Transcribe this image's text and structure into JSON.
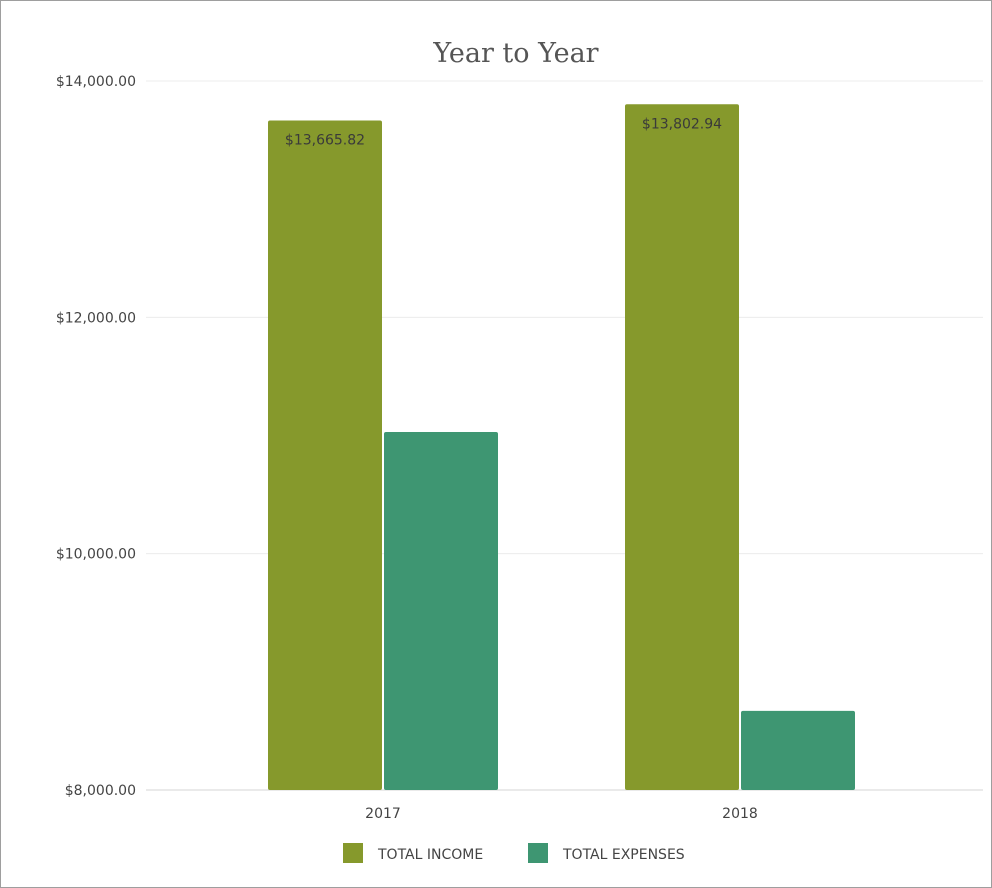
{
  "chart_data": {
    "type": "bar",
    "title": "Year to Year",
    "xlabel": "",
    "ylabel": "",
    "categories": [
      "2017",
      "2018"
    ],
    "series": [
      {
        "name": "TOTAL INCOME",
        "color": "#86992c",
        "values": [
          13665.82,
          13802.94
        ]
      },
      {
        "name": "TOTAL EXPENSES",
        "color": "#3e9672",
        "values": [
          11030,
          8670
        ]
      }
    ],
    "data_labels": {
      "TOTAL INCOME": [
        "$13,665.82",
        "$13,802.94"
      ]
    },
    "ylim": [
      8000,
      14000
    ],
    "yticks": [
      8000,
      10000,
      12000,
      14000
    ],
    "ytick_labels": [
      "$8,000.00",
      "$10,000.00",
      "$12,000.00",
      "$14,000.00"
    ],
    "grid": true,
    "legend_position": "bottom"
  }
}
